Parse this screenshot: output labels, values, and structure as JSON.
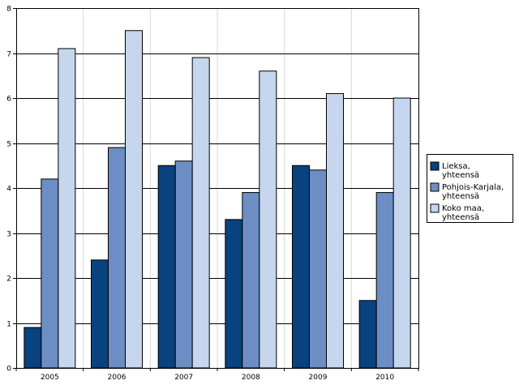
{
  "chart_data": {
    "type": "bar",
    "title": "",
    "xlabel": "",
    "ylabel": "",
    "ylim": [
      0,
      8
    ],
    "yticks": [
      "0",
      "1",
      "2",
      "3",
      "4",
      "5",
      "6",
      "7",
      "8"
    ],
    "grid": true,
    "legend_placement": "right",
    "categories": [
      "2005",
      "2006",
      "2007",
      "2008",
      "2009",
      "2010"
    ],
    "series": [
      {
        "name_lines": [
          "Lieksa,",
          "yhteensä"
        ],
        "color": "#08427f",
        "values": [
          0.9,
          2.4,
          4.5,
          3.3,
          4.5,
          1.5
        ]
      },
      {
        "name_lines": [
          "Pohjois-Karjala,",
          "yhteensä"
        ],
        "color": "#6d8ec4",
        "values": [
          4.2,
          4.9,
          4.6,
          3.9,
          4.4,
          3.9
        ]
      },
      {
        "name_lines": [
          "Koko maa,",
          "yhteensä"
        ],
        "color": "#c6d6ee",
        "values": [
          7.1,
          7.5,
          6.9,
          6.6,
          6.1,
          6.0
        ]
      }
    ]
  }
}
